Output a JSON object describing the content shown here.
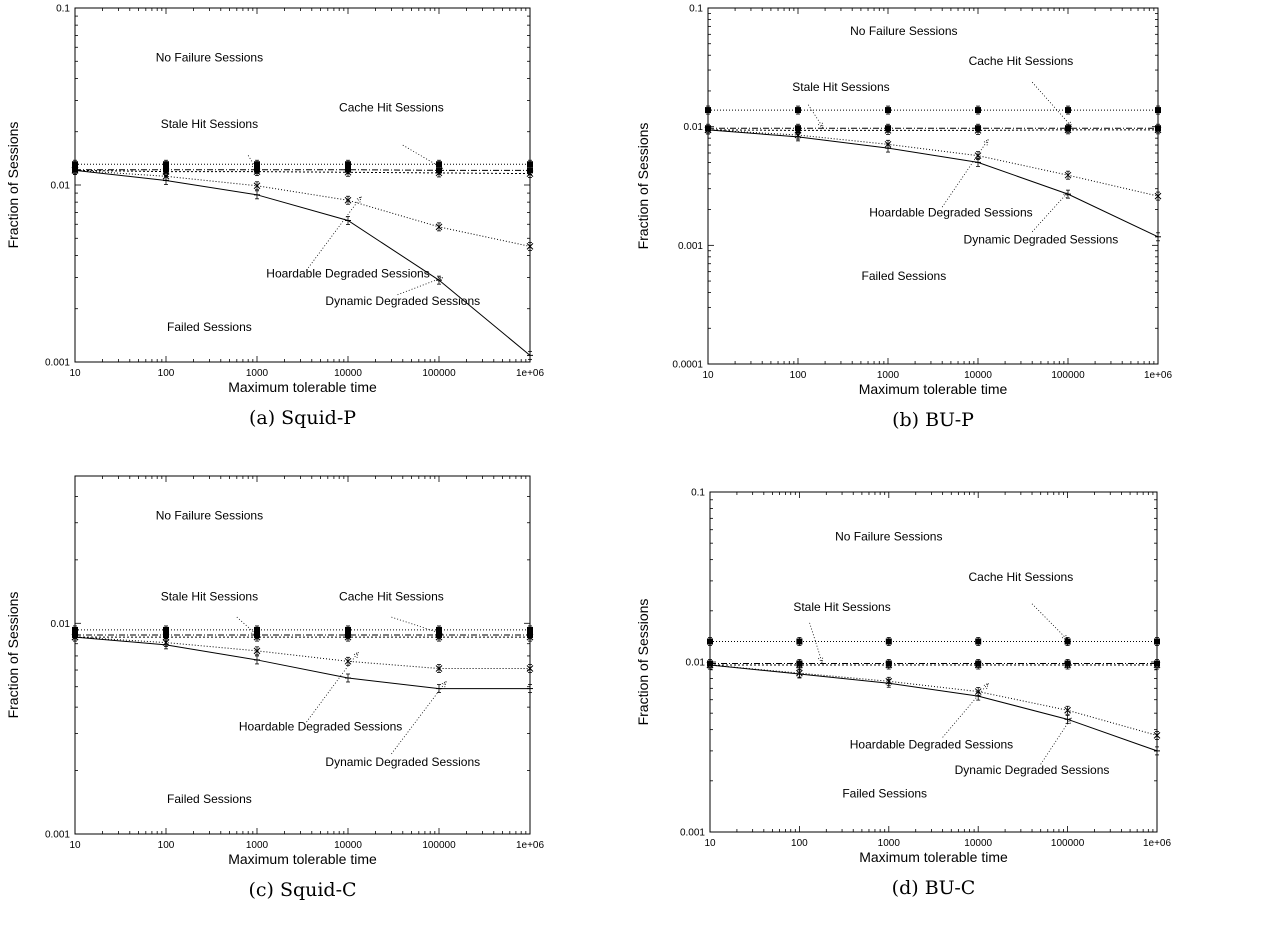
{
  "chart_data": [
    {
      "type": "line",
      "caption": "(a) Squid-P",
      "xlabel": "Maximum tolerable time",
      "ylabel": "Fraction of Sessions",
      "xscale": "log",
      "yscale": "log",
      "xlim": [
        10,
        1000000
      ],
      "ylim": [
        0.001,
        0.1
      ],
      "x": [
        10,
        100,
        1000,
        10000,
        100000,
        1000000
      ],
      "x_tick_labels": [
        "10",
        "100",
        "1000",
        "10000",
        "100000",
        "1e+06"
      ],
      "y_ticks": [
        0.001,
        0.01,
        0.1
      ],
      "y_tick_labels": [
        "0.001",
        "0.01",
        "0.1"
      ],
      "grid": false,
      "legend": "none",
      "series": [
        {
          "key": "cache",
          "values": [
            0.0131,
            0.0131,
            0.0131,
            0.0131,
            0.0131,
            0.0131
          ]
        },
        {
          "key": "stale",
          "values": [
            0.0122,
            0.0122,
            0.0122,
            0.0122,
            0.0121,
            0.0121
          ]
        },
        {
          "key": "hoard",
          "values": [
            0.0121,
            0.0119,
            0.0119,
            0.0118,
            0.0117,
            0.0116
          ]
        },
        {
          "key": "dynamic",
          "values": [
            0.0121,
            0.0112,
            0.0099,
            0.0082,
            0.0058,
            0.0045
          ]
        },
        {
          "key": "failed",
          "values": [
            0.0121,
            0.0106,
            0.0088,
            0.0063,
            0.0029,
            0.00109
          ]
        }
      ],
      "annotations": [
        {
          "text": "No Failure Sessions",
          "x": 300,
          "y": 0.05
        },
        {
          "text": "Cache Hit Sessions",
          "x": 30000,
          "y": 0.026
        },
        {
          "text": "Stale Hit Sessions",
          "x": 300,
          "y": 0.021
        },
        {
          "text": "Hoardable Degraded Sessions",
          "x": 10000,
          "y": 0.003
        },
        {
          "text": "Dynamic Degraded Sessions",
          "x": 40000,
          "y": 0.0021
        },
        {
          "text": "Failed Sessions",
          "x": 300,
          "y": 0.0015
        }
      ],
      "arrows": [
        {
          "from": [
            800,
            0.0147
          ],
          "to": [
            1000,
            0.0122
          ]
        },
        {
          "from": [
            40000,
            0.0168
          ],
          "to": [
            110000,
            0.0124
          ]
        },
        {
          "from": [
            3500,
            0.0033
          ],
          "to": [
            14000,
            0.0086
          ]
        },
        {
          "from": [
            35000,
            0.0024
          ],
          "to": [
            110000,
            0.003
          ]
        }
      ]
    },
    {
      "type": "line",
      "caption": "(b) BU-P",
      "xlabel": "Maximum tolerable time",
      "ylabel": "Fraction of Sessions",
      "xscale": "log",
      "yscale": "log",
      "xlim": [
        10,
        1000000
      ],
      "ylim": [
        0.0001,
        0.1
      ],
      "x": [
        10,
        100,
        1000,
        10000,
        100000,
        1000000
      ],
      "x_tick_labels": [
        "10",
        "100",
        "1000",
        "10000",
        "100000",
        "1e+06"
      ],
      "y_ticks": [
        0.0001,
        0.001,
        0.01,
        0.1
      ],
      "y_tick_labels": [
        "0.0001",
        "0.001",
        "0.01",
        "0.1"
      ],
      "grid": false,
      "legend": "none",
      "series": [
        {
          "key": "cache",
          "values": [
            0.0138,
            0.0138,
            0.0138,
            0.0138,
            0.0138,
            0.0138
          ]
        },
        {
          "key": "stale",
          "values": [
            0.0097,
            0.0097,
            0.0097,
            0.0097,
            0.0097,
            0.0097
          ]
        },
        {
          "key": "hoard",
          "values": [
            0.0094,
            0.0093,
            0.0093,
            0.0093,
            0.0094,
            0.0094
          ]
        },
        {
          "key": "dynamic",
          "values": [
            0.0094,
            0.0085,
            0.0071,
            0.0057,
            0.0039,
            0.0026
          ]
        },
        {
          "key": "failed",
          "values": [
            0.0094,
            0.0082,
            0.0066,
            0.005,
            0.0027,
            0.00118
          ]
        }
      ],
      "annotations": [
        {
          "text": "No Failure Sessions",
          "x": 1500,
          "y": 0.059
        },
        {
          "text": "Cache Hit Sessions",
          "x": 30000,
          "y": 0.033
        },
        {
          "text": "Stale Hit Sessions",
          "x": 300,
          "y": 0.02
        },
        {
          "text": "Hoardable Degraded Sessions",
          "x": 5000,
          "y": 0.00175
        },
        {
          "text": "Dynamic Degraded Sessions",
          "x": 50000,
          "y": 0.00104
        },
        {
          "text": "Failed Sessions",
          "x": 1500,
          "y": 0.00051
        }
      ],
      "arrows": [
        {
          "from": [
            130,
            0.0153
          ],
          "to": [
            190,
            0.0098
          ]
        },
        {
          "from": [
            40000,
            0.0237
          ],
          "to": [
            110000,
            0.01
          ]
        },
        {
          "from": [
            4000,
            0.0021
          ],
          "to": [
            13000,
            0.0078
          ]
        },
        {
          "from": [
            40000,
            0.0013
          ],
          "to": [
            100000,
            0.0028
          ]
        }
      ]
    },
    {
      "type": "line",
      "caption": "(c) Squid-C",
      "xlabel": "Maximum tolerable time",
      "ylabel": "Fraction of Sessions",
      "xscale": "log",
      "yscale": "log",
      "xlim": [
        10,
        1000000
      ],
      "ylim": [
        0.001,
        0.05
      ],
      "x": [
        10,
        100,
        1000,
        10000,
        100000,
        1000000
      ],
      "x_tick_labels": [
        "10",
        "100",
        "1000",
        "10000",
        "100000",
        "1e+06"
      ],
      "y_ticks": [
        0.001,
        0.01
      ],
      "y_tick_labels": [
        "0.001",
        "0.01"
      ],
      "grid": false,
      "legend": "none",
      "series": [
        {
          "key": "cache",
          "values": [
            0.0093,
            0.0093,
            0.0093,
            0.0093,
            0.0093,
            0.0093
          ]
        },
        {
          "key": "stale",
          "values": [
            0.0088,
            0.0088,
            0.0088,
            0.0088,
            0.0088,
            0.0088
          ]
        },
        {
          "key": "hoard",
          "values": [
            0.0086,
            0.0086,
            0.0086,
            0.0086,
            0.0086,
            0.0086
          ]
        },
        {
          "key": "dynamic",
          "values": [
            0.0086,
            0.0081,
            0.0074,
            0.0066,
            0.0061,
            0.0061
          ]
        },
        {
          "key": "failed",
          "values": [
            0.0086,
            0.0079,
            0.0067,
            0.0055,
            0.0049,
            0.0049
          ]
        }
      ],
      "annotations": [
        {
          "text": "No Failure Sessions",
          "x": 300,
          "y": 0.031
        },
        {
          "text": "Stale Hit Sessions",
          "x": 300,
          "y": 0.0128
        },
        {
          "text": "Cache Hit Sessions",
          "x": 30000,
          "y": 0.0128
        },
        {
          "text": "Hoardable Degraded Sessions",
          "x": 5000,
          "y": 0.0031
        },
        {
          "text": "Dynamic Degraded Sessions",
          "x": 40000,
          "y": 0.0021
        },
        {
          "text": "Failed Sessions",
          "x": 300,
          "y": 0.0014
        }
      ],
      "arrows": [
        {
          "from": [
            600,
            0.0107
          ],
          "to": [
            1000,
            0.0088
          ]
        },
        {
          "from": [
            30000,
            0.0107
          ],
          "to": [
            110000,
            0.0089
          ]
        },
        {
          "from": [
            3500,
            0.0034
          ],
          "to": [
            13000,
            0.0073
          ]
        },
        {
          "from": [
            30000,
            0.0024
          ],
          "to": [
            120000,
            0.0053
          ]
        }
      ]
    },
    {
      "type": "line",
      "caption": "(d) BU-C",
      "xlabel": "Maximum tolerable time",
      "ylabel": "Fraction of Sessions",
      "xscale": "log",
      "yscale": "log",
      "xlim": [
        10,
        1000000
      ],
      "ylim": [
        0.001,
        0.1
      ],
      "x": [
        10,
        100,
        1000,
        10000,
        100000,
        1000000
      ],
      "x_tick_labels": [
        "10",
        "100",
        "1000",
        "10000",
        "100000",
        "1e+06"
      ],
      "y_ticks": [
        0.001,
        0.01,
        0.1
      ],
      "y_tick_labels": [
        "0.001",
        "0.01",
        "0.1"
      ],
      "grid": false,
      "legend": "none",
      "series": [
        {
          "key": "cache",
          "values": [
            0.0132,
            0.0132,
            0.0132,
            0.0132,
            0.0132,
            0.0132
          ]
        },
        {
          "key": "stale",
          "values": [
            0.0098,
            0.0098,
            0.0098,
            0.0098,
            0.0098,
            0.0098
          ]
        },
        {
          "key": "hoard",
          "values": [
            0.0096,
            0.0096,
            0.0096,
            0.0096,
            0.0096,
            0.0096
          ]
        },
        {
          "key": "dynamic",
          "values": [
            0.0096,
            0.0086,
            0.0077,
            0.0067,
            0.0052,
            0.0037
          ]
        },
        {
          "key": "failed",
          "values": [
            0.0096,
            0.0085,
            0.0075,
            0.0063,
            0.0046,
            0.003
          ]
        }
      ],
      "annotations": [
        {
          "text": "No Failure Sessions",
          "x": 1000,
          "y": 0.052
        },
        {
          "text": "Cache Hit Sessions",
          "x": 30000,
          "y": 0.03
        },
        {
          "text": "Stale Hit Sessions",
          "x": 300,
          "y": 0.02
        },
        {
          "text": "Hoardable Degraded Sessions",
          "x": 3000,
          "y": 0.0031
        },
        {
          "text": "Dynamic Degraded Sessions",
          "x": 40000,
          "y": 0.0022
        },
        {
          "text": "Failed Sessions",
          "x": 900,
          "y": 0.0016
        }
      ],
      "arrows": [
        {
          "from": [
            130,
            0.017
          ],
          "to": [
            180,
            0.0099
          ]
        },
        {
          "from": [
            40000,
            0.022
          ],
          "to": [
            100000,
            0.0135
          ]
        },
        {
          "from": [
            4000,
            0.0036
          ],
          "to": [
            13000,
            0.0075
          ]
        },
        {
          "from": [
            50000,
            0.0025
          ],
          "to": [
            110000,
            0.0047
          ]
        }
      ]
    }
  ],
  "styles": {
    "cache": {
      "dash": "1,2",
      "marker": "square"
    },
    "stale": {
      "dash": "6,2,1,2",
      "marker": "square"
    },
    "hoard": {
      "dash": "2,2",
      "marker": "cross"
    },
    "dynamic": {
      "dash": "1,2",
      "marker": "x"
    },
    "failed": {
      "dash": "",
      "marker": "plus"
    }
  },
  "color": "#000000"
}
